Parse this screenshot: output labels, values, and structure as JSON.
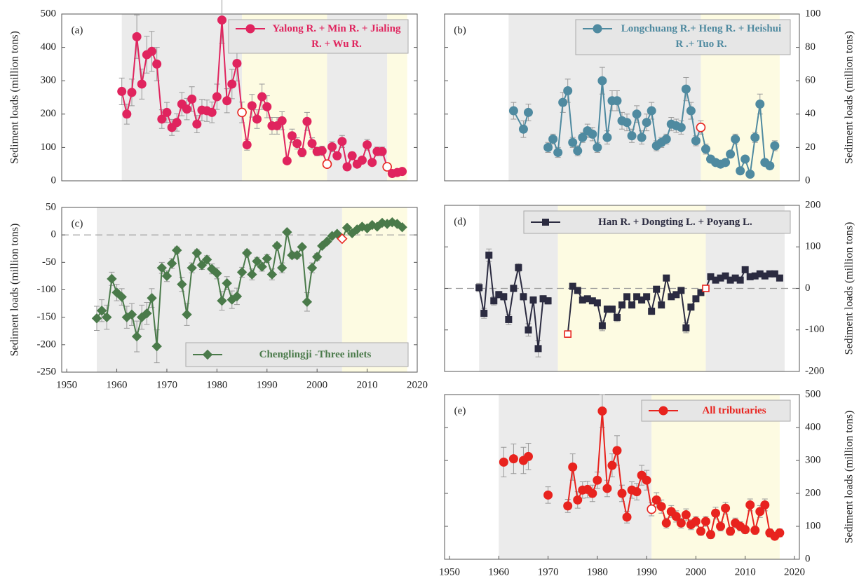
{
  "chart_data": [
    {
      "type": "line",
      "panel_label": "(a)",
      "y_label": "Sediment loads (million tons)",
      "y_axis_side": "left",
      "marker": "circle",
      "legend_position": "upper right",
      "xlim": [
        1949,
        2020
      ],
      "ylim": [
        0,
        500
      ],
      "yticks": [
        0,
        100,
        200,
        300,
        400,
        500
      ],
      "periods": [
        {
          "start": 1961,
          "end": 1985,
          "color": "#ebebeb"
        },
        {
          "start": 1985,
          "end": 2002,
          "color": "#fdfbe2"
        },
        {
          "start": 2002,
          "end": 2014,
          "color": "#ebebeb"
        },
        {
          "start": 2014,
          "end": 2018,
          "color": "#fdfbe2"
        }
      ],
      "change_points": [
        1985,
        2002,
        2014
      ],
      "x": [
        1961,
        1962,
        1963,
        1964,
        1965,
        1966,
        1967,
        1968,
        1969,
        1970,
        1971,
        1972,
        1973,
        1974,
        1975,
        1976,
        1977,
        1978,
        1979,
        1980,
        1981,
        1982,
        1983,
        1984,
        1985,
        1986,
        1987,
        1988,
        1989,
        1990,
        1991,
        1992,
        1993,
        1994,
        1995,
        1996,
        1997,
        1998,
        1999,
        2000,
        2001,
        2002,
        2003,
        2004,
        2005,
        2006,
        2007,
        2008,
        2009,
        2010,
        2011,
        2012,
        2013,
        2014,
        2015,
        2016,
        2017
      ],
      "series": [
        {
          "name": "Yalong R. + Min R. + Jialing R. + Wu R.",
          "color": "#e0245e",
          "values": [
            268,
            200,
            265,
            432,
            290,
            378,
            388,
            350,
            185,
            205,
            160,
            175,
            230,
            215,
            245,
            170,
            212,
            210,
            205,
            252,
            482,
            240,
            290,
            352,
            205,
            108,
            225,
            185,
            252,
            222,
            165,
            165,
            180,
            60,
            135,
            112,
            85,
            178,
            112,
            88,
            90,
            50,
            102,
            75,
            118,
            42,
            75,
            50,
            62,
            108,
            55,
            88,
            88,
            42,
            22,
            25,
            28
          ],
          "errors": [
            40,
            30,
            40,
            65,
            45,
            55,
            60,
            50,
            28,
            30,
            24,
            26,
            35,
            32,
            37,
            26,
            32,
            32,
            31,
            38,
            70,
            36,
            44,
            53,
            31,
            16,
            34,
            28,
            38,
            33,
            25,
            25,
            27,
            9,
            20,
            17,
            13,
            27,
            17,
            13,
            14,
            8,
            15,
            11,
            18,
            6,
            11,
            8,
            9,
            16,
            8,
            13,
            13,
            6,
            3,
            4,
            4
          ]
        }
      ]
    },
    {
      "type": "line",
      "panel_label": "(b)",
      "y_label": "Sediment loads (million tons)",
      "y_axis_side": "right",
      "marker": "circle",
      "legend_position": "upper right",
      "xlim": [
        1949,
        2021
      ],
      "ylim": [
        0,
        100
      ],
      "yticks": [
        0,
        20,
        40,
        60,
        80,
        100
      ],
      "periods": [
        {
          "start": 1962,
          "end": 2001,
          "color": "#ebebeb"
        },
        {
          "start": 2001,
          "end": 2017,
          "color": "#fdfbe2"
        }
      ],
      "change_points": [
        2001
      ],
      "x": [
        1963,
        1965,
        1966,
        1968,
        1970,
        1971,
        1972,
        1973,
        1974,
        1975,
        1976,
        1977,
        1978,
        1979,
        1980,
        1981,
        1982,
        1983,
        1984,
        1985,
        1986,
        1987,
        1988,
        1989,
        1990,
        1991,
        1992,
        1993,
        1994,
        1995,
        1996,
        1997,
        1998,
        1999,
        2000,
        2001,
        2002,
        2003,
        2004,
        2005,
        2006,
        2007,
        2008,
        2009,
        2010,
        2011,
        2012,
        2013,
        2014,
        2015,
        2016
      ],
      "series": [
        {
          "name": "Longchuang R.+ Heng R. + Heishui R .+ Tuo R.",
          "color": "#4f8aa0",
          "values": [
            42,
            31,
            41,
            null,
            20,
            25,
            17,
            47,
            54,
            23,
            18,
            26,
            30,
            28,
            20,
            60,
            26,
            48,
            48,
            36,
            35,
            27,
            40,
            26,
            35,
            42,
            21,
            23,
            25,
            34,
            33,
            32,
            55,
            42,
            24,
            32,
            19,
            13,
            11,
            10,
            11,
            16,
            25,
            6,
            13,
            4,
            26,
            46,
            11,
            9,
            21
          ],
          "errors": [
            5,
            5,
            5,
            null,
            3,
            3,
            3,
            6,
            7,
            3,
            3,
            3,
            4,
            4,
            3,
            8,
            4,
            6,
            6,
            5,
            5,
            4,
            5,
            4,
            5,
            5,
            3,
            3,
            3,
            4,
            4,
            4,
            7,
            5,
            3,
            4,
            3,
            2,
            2,
            2,
            2,
            2,
            3,
            2,
            2,
            2,
            3,
            6,
            2,
            2,
            3
          ]
        }
      ]
    },
    {
      "type": "line",
      "panel_label": "(c)",
      "y_label": "Sediment loads (million tons)",
      "y_axis_side": "left",
      "marker": "diamond",
      "legend_position": "lower right",
      "zero_line": true,
      "xlim": [
        1949,
        2020
      ],
      "xticks": [
        1950,
        1960,
        1970,
        1980,
        1990,
        2000,
        2010,
        2020
      ],
      "ylim": [
        -250,
        50
      ],
      "yticks": [
        -250,
        -200,
        -150,
        -100,
        -50,
        0,
        50
      ],
      "periods": [
        {
          "start": 1956,
          "end": 2005,
          "color": "#ebebeb"
        },
        {
          "start": 2005,
          "end": 2018,
          "color": "#fdfbe2"
        }
      ],
      "change_points": [
        2005
      ],
      "x": [
        1956,
        1957,
        1958,
        1959,
        1960,
        1961,
        1962,
        1963,
        1964,
        1965,
        1966,
        1967,
        1968,
        1969,
        1970,
        1971,
        1972,
        1973,
        1974,
        1975,
        1976,
        1977,
        1978,
        1979,
        1980,
        1981,
        1982,
        1983,
        1984,
        1985,
        1986,
        1987,
        1988,
        1989,
        1990,
        1991,
        1992,
        1993,
        1994,
        1995,
        1996,
        1997,
        1998,
        1999,
        2000,
        2001,
        2002,
        2003,
        2004,
        2005,
        2006,
        2007,
        2008,
        2009,
        2010,
        2011,
        2012,
        2013,
        2014,
        2015,
        2016,
        2017
      ],
      "series": [
        {
          "name": "Chenglingji -Three inlets",
          "color": "#4a7a4a",
          "values": [
            -152,
            -138,
            -150,
            -80,
            -105,
            -113,
            -150,
            -145,
            -185,
            -150,
            -143,
            -115,
            -203,
            -60,
            -75,
            -52,
            -28,
            -90,
            -145,
            -60,
            -33,
            -55,
            -45,
            -62,
            -70,
            -120,
            -88,
            -118,
            -112,
            -68,
            -33,
            -72,
            -48,
            -58,
            -43,
            -72,
            -20,
            -60,
            5,
            -37,
            -37,
            -22,
            -122,
            -60,
            -40,
            -20,
            -12,
            -2,
            2,
            -7,
            13,
            3,
            10,
            15,
            12,
            18,
            15,
            22,
            20,
            23,
            20,
            14
          ],
          "errors": [
            22,
            20,
            22,
            12,
            15,
            15,
            20,
            20,
            28,
            22,
            20,
            17,
            30,
            10,
            10,
            9,
            6,
            13,
            20,
            9,
            6,
            8,
            7,
            9,
            10,
            17,
            12,
            16,
            15,
            9,
            6,
            10,
            7,
            8,
            7,
            10,
            5,
            9,
            4,
            6,
            6,
            4,
            17,
            9,
            6,
            4,
            3,
            3,
            3,
            3,
            4,
            3,
            3,
            4,
            3,
            4,
            4,
            4,
            4,
            4,
            4,
            3
          ]
        }
      ]
    },
    {
      "type": "line",
      "panel_label": "(d)",
      "y_label": "Sediment loads (million tons)",
      "y_axis_side": "right",
      "marker": "square",
      "legend_position": "upper right",
      "zero_line": true,
      "xlim": [
        1949,
        2021
      ],
      "ylim": [
        -200,
        200
      ],
      "yticks": [
        -200,
        -100,
        0,
        100,
        200
      ],
      "periods": [
        {
          "start": 1956,
          "end": 1972,
          "color": "#ebebeb"
        },
        {
          "start": 1972,
          "end": 2002,
          "color": "#fdfbe2"
        },
        {
          "start": 2002,
          "end": 2018,
          "color": "#ebebeb"
        }
      ],
      "change_points": [
        1974,
        2002
      ],
      "x": [
        1956,
        1957,
        1958,
        1959,
        1960,
        1961,
        1962,
        1963,
        1964,
        1965,
        1966,
        1967,
        1968,
        1969,
        1970,
        1972,
        1974,
        1975,
        1976,
        1977,
        1978,
        1979,
        1980,
        1981,
        1982,
        1983,
        1984,
        1985,
        1986,
        1987,
        1988,
        1989,
        1990,
        1991,
        1992,
        1993,
        1994,
        1995,
        1996,
        1997,
        1998,
        1999,
        2000,
        2001,
        2002,
        2003,
        2004,
        2005,
        2006,
        2007,
        2008,
        2009,
        2010,
        2011,
        2012,
        2013,
        2014,
        2015,
        2016,
        2017
      ],
      "series": [
        {
          "name": "Han R. + Dongting L. + Poyang L.",
          "color": "#2b2b40",
          "values": [
            2,
            -60,
            80,
            -30,
            -15,
            -20,
            -75,
            0,
            50,
            -20,
            -100,
            -28,
            -145,
            -25,
            -30,
            null,
            -110,
            5,
            -5,
            -28,
            -25,
            -30,
            -35,
            -90,
            -50,
            -50,
            -70,
            -40,
            -20,
            -40,
            -20,
            -28,
            -20,
            -55,
            -2,
            -40,
            25,
            -20,
            -15,
            -5,
            -95,
            -45,
            -25,
            -10,
            0,
            28,
            20,
            25,
            30,
            20,
            25,
            20,
            45,
            28,
            30,
            35,
            30,
            35,
            35,
            25
          ],
          "errors": [
            10,
            12,
            15,
            10,
            8,
            8,
            12,
            8,
            10,
            8,
            15,
            8,
            20,
            8,
            8,
            null,
            8,
            6,
            6,
            6,
            6,
            6,
            6,
            12,
            8,
            8,
            10,
            6,
            6,
            6,
            6,
            6,
            6,
            8,
            5,
            6,
            5,
            5,
            5,
            5,
            12,
            6,
            5,
            5,
            5,
            5,
            5,
            5,
            5,
            5,
            5,
            5,
            6,
            5,
            5,
            5,
            5,
            5,
            5,
            5
          ]
        }
      ]
    },
    {
      "type": "line",
      "panel_label": "(e)",
      "y_label": "Sediment loads (million tons)",
      "y_axis_side": "right",
      "marker": "circle",
      "legend_position": "upper right",
      "xlim": [
        1949,
        2021
      ],
      "xticks": [
        1950,
        1960,
        1970,
        1980,
        1990,
        2000,
        2010,
        2020
      ],
      "ylim": [
        0,
        500
      ],
      "yticks": [
        0,
        100,
        200,
        300,
        400,
        500
      ],
      "periods": [
        {
          "start": 1960,
          "end": 1991,
          "color": "#ebebeb"
        },
        {
          "start": 1991,
          "end": 2017,
          "color": "#fdfbe2"
        }
      ],
      "change_points": [
        1991
      ],
      "x": [
        1961,
        1962,
        1963,
        1964,
        1965,
        1966,
        1968,
        1970,
        1972,
        1974,
        1975,
        1976,
        1977,
        1978,
        1979,
        1980,
        1981,
        1982,
        1983,
        1984,
        1985,
        1986,
        1987,
        1988,
        1989,
        1990,
        1991,
        1992,
        1993,
        1994,
        1995,
        1996,
        1997,
        1998,
        1999,
        2000,
        2001,
        2002,
        2003,
        2004,
        2005,
        2006,
        2007,
        2008,
        2009,
        2010,
        2011,
        2012,
        2013,
        2014,
        2015,
        2016,
        2017
      ],
      "series": [
        {
          "name": "All tributaries",
          "color": "#e8231e",
          "values": [
            295,
            null,
            305,
            null,
            300,
            312,
            null,
            195,
            null,
            162,
            280,
            180,
            210,
            212,
            200,
            240,
            450,
            215,
            285,
            330,
            200,
            128,
            210,
            205,
            255,
            240,
            152,
            180,
            160,
            110,
            145,
            130,
            110,
            135,
            105,
            115,
            85,
            115,
            75,
            140,
            100,
            155,
            85,
            110,
            100,
            90,
            165,
            88,
            145,
            165,
            80,
            70,
            80
          ],
          "errors": [
            45,
            null,
            45,
            null,
            40,
            40,
            null,
            25,
            null,
            20,
            40,
            25,
            25,
            25,
            25,
            25,
            50,
            25,
            35,
            45,
            25,
            18,
            25,
            25,
            30,
            30,
            20,
            22,
            20,
            15,
            18,
            17,
            15,
            18,
            15,
            15,
            12,
            15,
            12,
            18,
            14,
            18,
            12,
            15,
            14,
            12,
            18,
            12,
            18,
            18,
            12,
            10,
            12
          ]
        }
      ]
    }
  ]
}
